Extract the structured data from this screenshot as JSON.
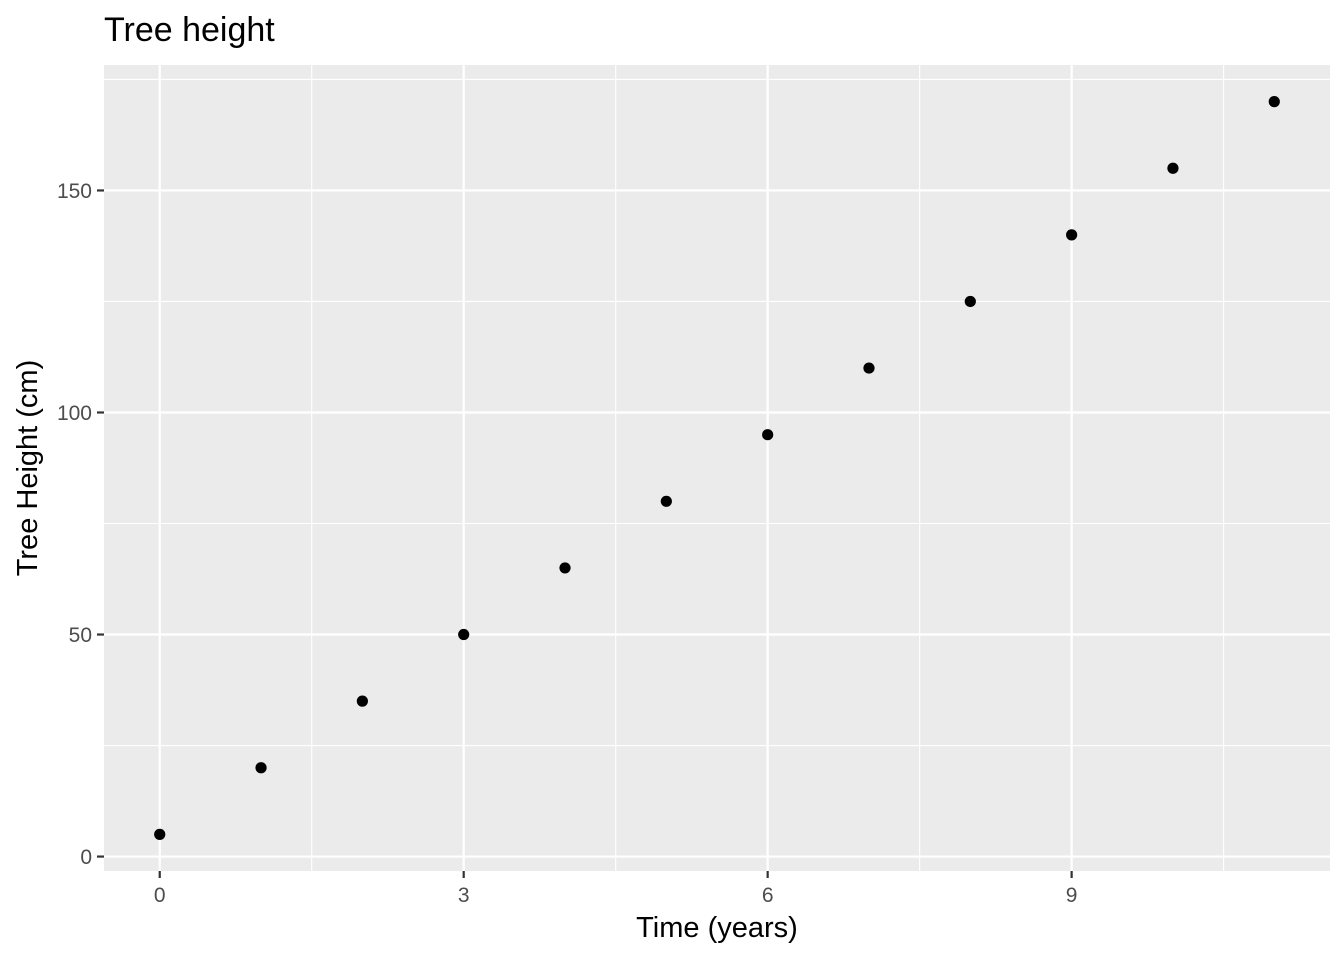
{
  "chart_data": {
    "type": "scatter",
    "title": "Tree height",
    "xlabel": "Time (years)",
    "ylabel": "Tree Height (cm)",
    "xlim": [
      -0.55,
      11.55
    ],
    "ylim": [
      -3.25,
      178.25
    ],
    "x_ticks": [
      0,
      3,
      6,
      9
    ],
    "x_tick_labels": [
      "0",
      "3",
      "6",
      "9"
    ],
    "y_ticks": [
      0,
      50,
      100,
      150
    ],
    "y_tick_labels": [
      "0",
      "50",
      "100",
      "150"
    ],
    "grid": true,
    "legend": "none",
    "point_color": "#000000",
    "panel_background": "#ebebeb",
    "grid_color": "#ffffff",
    "series": [
      {
        "x": [
          0,
          1,
          2,
          3,
          4,
          5,
          6,
          7,
          8,
          9,
          10,
          11
        ],
        "y": [
          5,
          20,
          35,
          50,
          65,
          80,
          95,
          110,
          125,
          140,
          155,
          170
        ]
      }
    ]
  }
}
